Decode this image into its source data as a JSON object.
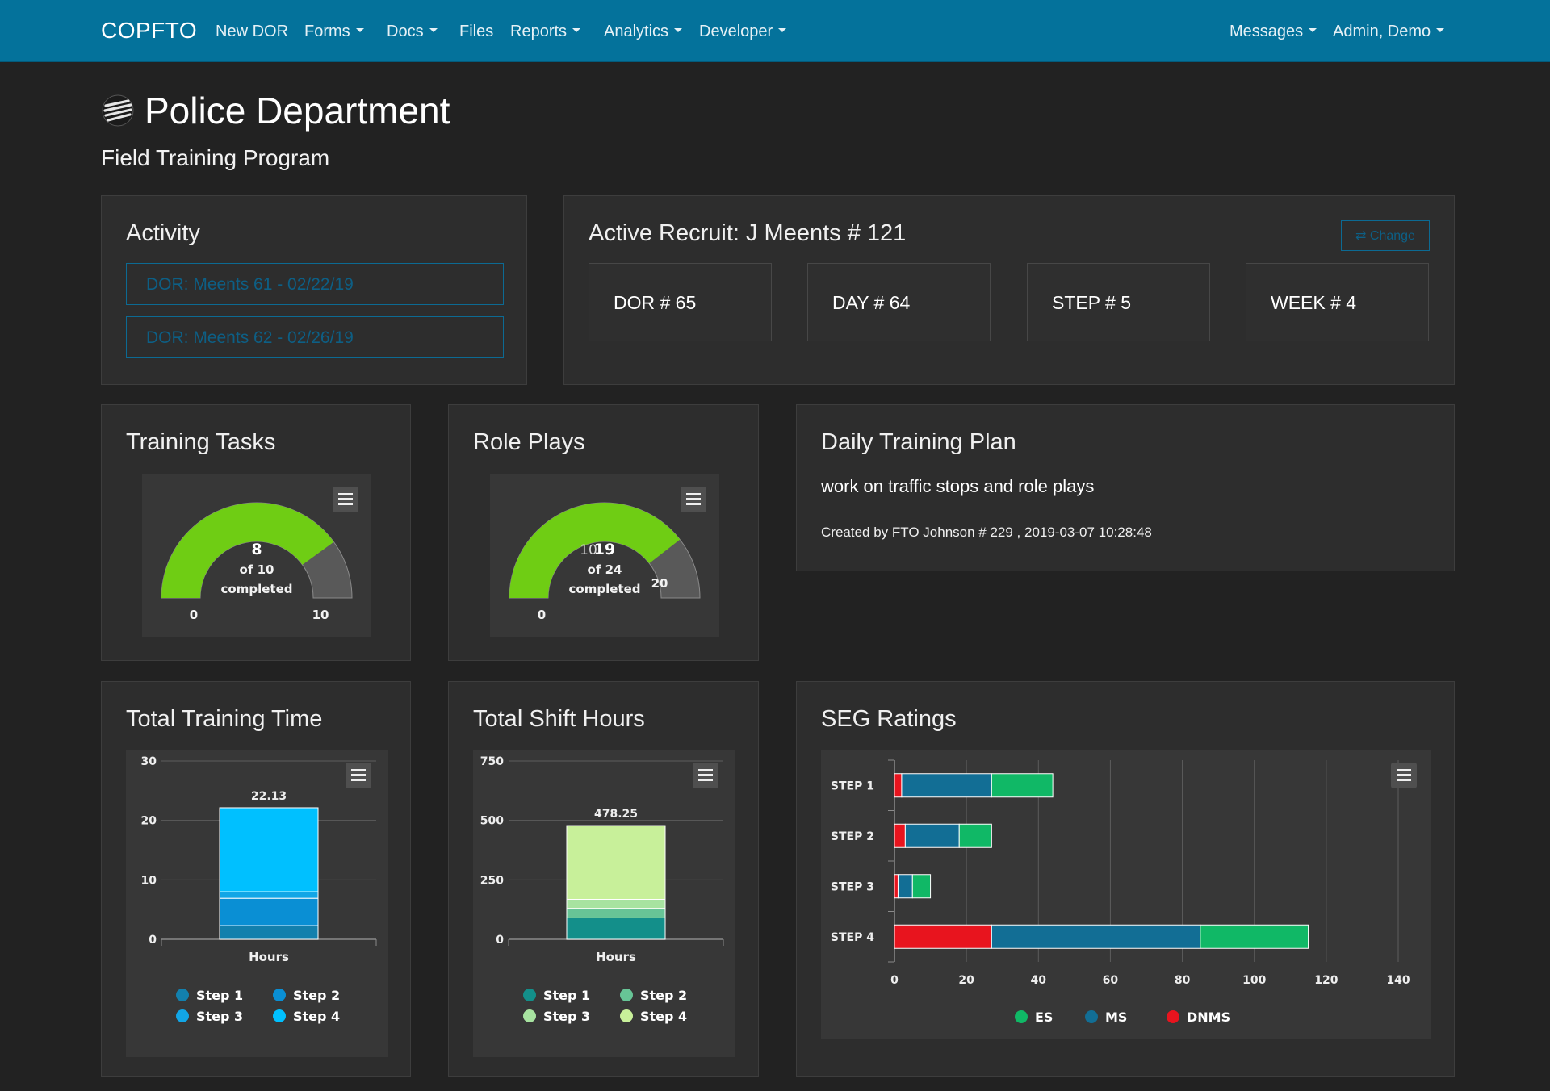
{
  "nav": {
    "brand": "COPFTO",
    "items": [
      {
        "label": "New DOR"
      },
      {
        "label": "Forms"
      },
      {
        "label": "Docs"
      },
      {
        "label": "Files"
      },
      {
        "label": "Reports"
      },
      {
        "label": "Analytics"
      },
      {
        "label": "Developer"
      }
    ],
    "right": [
      {
        "label": "Messages"
      },
      {
        "label": "Admin, Demo"
      }
    ]
  },
  "header": {
    "title": "Police Department",
    "subtitle": "Field Training Program"
  },
  "activity": {
    "title": "Activity",
    "links": [
      "DOR: Meents 61 - 02/22/19",
      "DOR: Meents 62 - 02/26/19"
    ]
  },
  "recruit": {
    "title": "Active Recruit: J Meents # 121",
    "change_label": "⇄ Change",
    "stats": [
      "DOR # 65",
      "DAY # 64",
      "STEP # 5",
      "WEEK # 4"
    ]
  },
  "training_tasks": {
    "title": "Training Tasks",
    "gauge": {
      "value": "8",
      "line1": "of 10",
      "line2": "completed",
      "min": "0",
      "max": "10",
      "fraction": 0.8
    }
  },
  "role_plays": {
    "title": "Role Plays",
    "gauge": {
      "value": "19",
      "ghost": "10",
      "line1": "of 24",
      "line2": "completed",
      "min": "0",
      "marker": "20",
      "fraction": 0.79
    }
  },
  "daily_plan": {
    "title": "Daily Training Plan",
    "text": "work on traffic stops and role plays",
    "meta": "Created by FTO Johnson # 229 , 2019-03-07 10:28:48"
  },
  "chart_data": [
    {
      "type": "bar",
      "title": "Total Training Time",
      "categories": [
        "Hours"
      ],
      "ylim": [
        0,
        30
      ],
      "yticks": [
        "0",
        "10",
        "20",
        "30"
      ],
      "total_label": "22.13",
      "series": [
        {
          "name": "Step 1",
          "values": [
            2.3
          ],
          "color": "#1380ad"
        },
        {
          "name": "Step 2",
          "values": [
            4.6
          ],
          "color": "#0a8fd4"
        },
        {
          "name": "Step 3",
          "values": [
            1.1
          ],
          "color": "#12a6e6"
        },
        {
          "name": "Step 4",
          "values": [
            14.13
          ],
          "color": "#00c0ff"
        }
      ],
      "legend": [
        "Step 1",
        "Step 2",
        "Step 3",
        "Step 4"
      ],
      "grid": true
    },
    {
      "type": "bar",
      "title": "Total Shift Hours",
      "categories": [
        "Hours"
      ],
      "ylim": [
        0,
        750
      ],
      "yticks": [
        "0",
        "250",
        "500",
        "750"
      ],
      "total_label": "478.25",
      "series": [
        {
          "name": "Step 1",
          "values": [
            90
          ],
          "color": "#138f8a"
        },
        {
          "name": "Step 2",
          "values": [
            40
          ],
          "color": "#67c496"
        },
        {
          "name": "Step 3",
          "values": [
            38
          ],
          "color": "#a7e3a0"
        },
        {
          "name": "Step 4",
          "values": [
            310.25
          ],
          "color": "#c8f09a"
        }
      ],
      "legend": [
        "Step 1",
        "Step 2",
        "Step 3",
        "Step 4"
      ],
      "grid": true
    },
    {
      "type": "bar",
      "orientation": "horizontal",
      "title": "SEG Ratings",
      "categories": [
        "STEP 1",
        "STEP 2",
        "STEP 3",
        "STEP 4"
      ],
      "xlim": [
        0,
        140
      ],
      "xticks": [
        "0",
        "20",
        "40",
        "60",
        "80",
        "100",
        "120",
        "140"
      ],
      "series": [
        {
          "name": "DNMS",
          "values": [
            2,
            3,
            1,
            27
          ],
          "color": "#e8141e"
        },
        {
          "name": "MS",
          "values": [
            25,
            15,
            4,
            58
          ],
          "color": "#126e95"
        },
        {
          "name": "ES",
          "values": [
            17,
            9,
            5,
            30
          ],
          "color": "#10b866"
        }
      ],
      "legend": [
        "ES",
        "MS",
        "DNMS"
      ],
      "grid": true
    }
  ]
}
